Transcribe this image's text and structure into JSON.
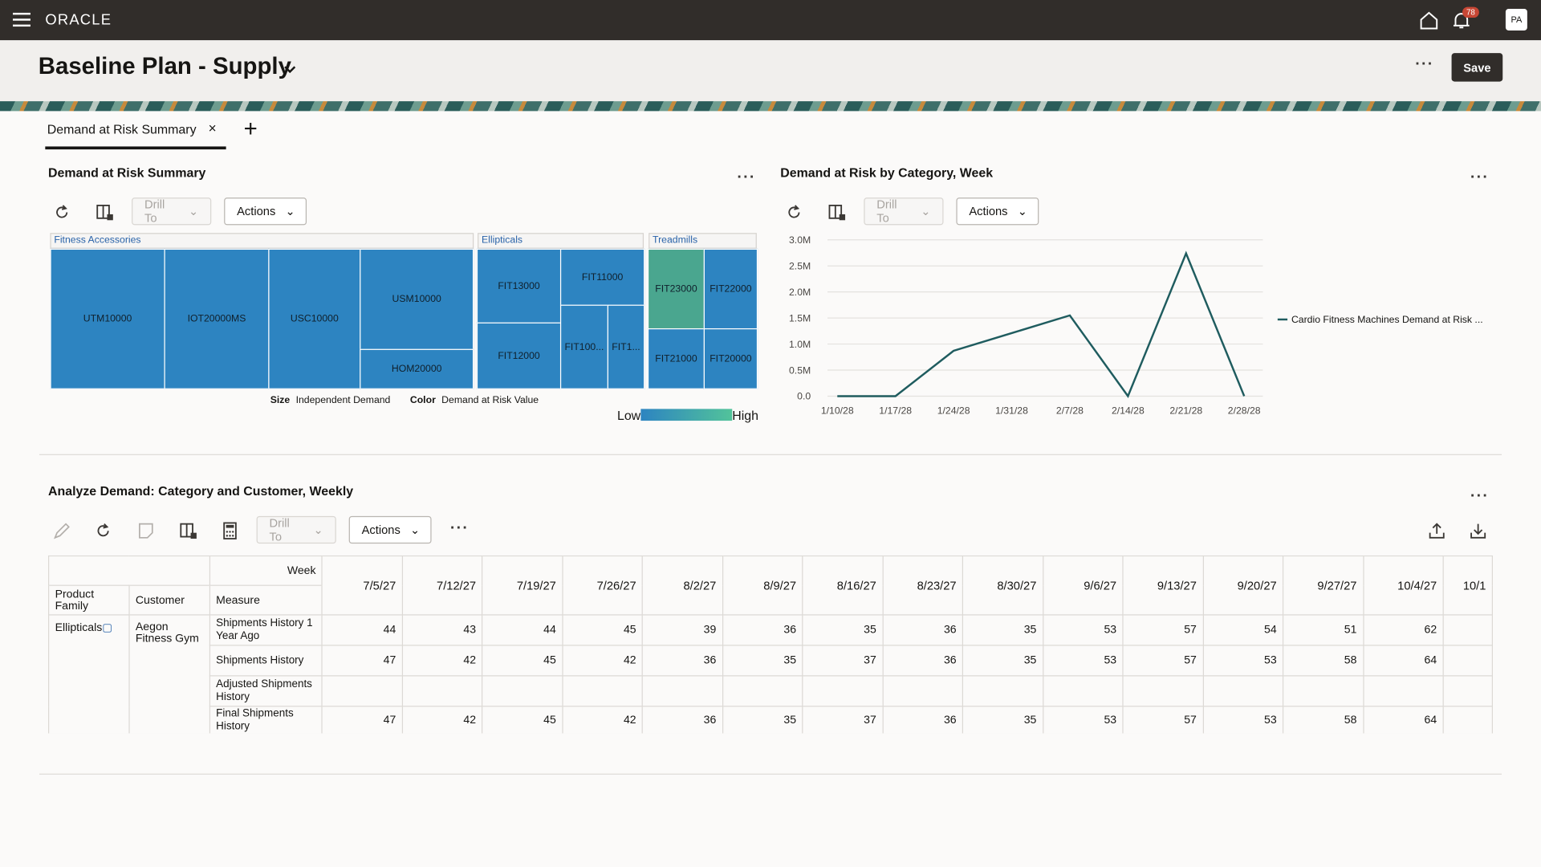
{
  "header": {
    "logo": "ORACLE",
    "notification_count": 78,
    "avatar": "PA",
    "title": "Baseline Plan - Supply",
    "save": "Save"
  },
  "tabs": [
    "Demand at Risk Summary"
  ],
  "treemap_panel": {
    "title": "Demand at Risk Summary",
    "drill_to": "Drill To",
    "actions": "Actions",
    "groups": [
      {
        "label": "Fitness Accessories",
        "items": [
          "UTM10000",
          "IOT20000MS",
          "USC10000",
          "USM10000",
          "HOM20000"
        ]
      },
      {
        "label": "Ellipticals",
        "items": [
          "FIT13000",
          "FIT12000",
          "FIT11000",
          "FIT100...",
          "FIT1..."
        ]
      },
      {
        "label": "Treadmills",
        "items": [
          "FIT23000",
          "FIT22000",
          "FIT21000",
          "FIT20000"
        ]
      }
    ],
    "legend": {
      "size_label": "Size",
      "size_measure": "Independent Demand",
      "color_label": "Color",
      "color_measure": "Demand at Risk Value",
      "low": "Low",
      "high": "High"
    }
  },
  "chart_panel": {
    "drill_to": "Drill To",
    "actions": "Actions"
  },
  "chart_data": {
    "type": "line",
    "title": "Demand at Risk by Category, Week",
    "x": [
      "1/10/28",
      "1/17/28",
      "1/24/28",
      "1/31/28",
      "2/7/28",
      "2/14/28",
      "2/21/28",
      "2/28/28"
    ],
    "series": [
      {
        "name": "Cardio Fitness Machines Demand at Risk ...",
        "color": "#1f5c5f",
        "values": [
          0,
          0,
          870000,
          1210000,
          1550000,
          0,
          2740000,
          0
        ]
      }
    ],
    "ylim": [
      0,
      3000000
    ],
    "yticks": [
      {
        "value": 0,
        "label": "0.0"
      },
      {
        "value": 500000,
        "label": "0.5M"
      },
      {
        "value": 1000000,
        "label": "1.0M"
      },
      {
        "value": 1500000,
        "label": "1.5M"
      },
      {
        "value": 2000000,
        "label": "2.0M"
      },
      {
        "value": 2500000,
        "label": "2.5M"
      },
      {
        "value": 3000000,
        "label": "3.0M"
      }
    ],
    "grid": true,
    "legend": "right"
  },
  "table_panel": {
    "title": "Analyze Demand: Category and Customer, Weekly",
    "drill_to": "Drill To",
    "actions": "Actions",
    "week_label": "Week",
    "headers": [
      "Product Family",
      "Customer",
      "Measure"
    ],
    "weeks": [
      "7/5/27",
      "7/12/27",
      "7/19/27",
      "7/26/27",
      "8/2/27",
      "8/9/27",
      "8/16/27",
      "8/23/27",
      "8/30/27",
      "9/6/27",
      "9/13/27",
      "9/20/27",
      "9/27/27",
      "10/4/27",
      "10/1"
    ],
    "product_family": "Ellipticals",
    "customer": "Aegon Fitness Gym",
    "rows": [
      {
        "measure": "Shipments History 1 Year Ago",
        "values": [
          44,
          43,
          44,
          45,
          39,
          36,
          35,
          36,
          35,
          53,
          57,
          54,
          51,
          62
        ]
      },
      {
        "measure": "Shipments History",
        "values": [
          47,
          42,
          45,
          42,
          36,
          35,
          37,
          36,
          35,
          53,
          57,
          53,
          58,
          64
        ]
      },
      {
        "measure": "Adjusted Shipments History",
        "values": [
          null,
          null,
          null,
          null,
          null,
          null,
          null,
          null,
          null,
          null,
          null,
          null,
          null,
          null
        ]
      },
      {
        "measure": "Final Shipments History",
        "values": [
          47,
          42,
          45,
          42,
          36,
          35,
          37,
          36,
          35,
          53,
          57,
          53,
          58,
          64
        ]
      }
    ]
  }
}
